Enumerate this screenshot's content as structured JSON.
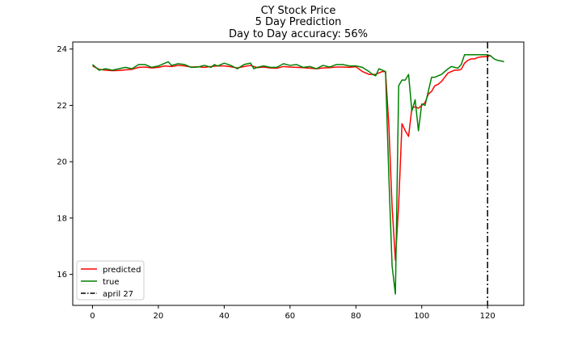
{
  "chart_data": {
    "type": "line",
    "title": "CY Stock Price",
    "subtitle": "5 Day Prediction",
    "annotation": "Day to Day accuracy: 56%",
    "xlabel": "",
    "ylabel": "",
    "xlim": [
      -6,
      131
    ],
    "ylim": [
      14.9,
      24.25
    ],
    "xticks": [
      0,
      20,
      40,
      60,
      80,
      100,
      120
    ],
    "yticks": [
      16,
      18,
      20,
      22,
      24
    ],
    "grid": false,
    "legend_position": "lower-left",
    "series": [
      {
        "name": "predicted",
        "color": "#ff0000",
        "x": [
          0,
          2,
          4,
          6,
          8,
          10,
          12,
          14,
          16,
          18,
          20,
          22,
          24,
          26,
          28,
          30,
          32,
          34,
          36,
          38,
          40,
          42,
          44,
          46,
          48,
          50,
          52,
          54,
          56,
          58,
          60,
          62,
          64,
          66,
          68,
          70,
          72,
          74,
          76,
          78,
          80,
          82,
          84,
          86,
          88,
          89,
          90,
          91,
          92,
          93,
          94,
          95,
          96,
          97,
          98,
          99,
          100,
          101,
          102,
          103,
          104,
          105,
          106,
          107,
          108,
          109,
          110,
          111,
          112,
          113,
          114,
          115,
          116,
          117,
          118,
          119,
          120,
          121
        ],
        "y": [
          23.4,
          23.28,
          23.25,
          23.23,
          23.24,
          23.26,
          23.28,
          23.35,
          23.36,
          23.33,
          23.35,
          23.4,
          23.38,
          23.42,
          23.4,
          23.36,
          23.37,
          23.35,
          23.38,
          23.4,
          23.4,
          23.37,
          23.33,
          23.38,
          23.42,
          23.34,
          23.36,
          23.33,
          23.32,
          23.38,
          23.36,
          23.35,
          23.34,
          23.32,
          23.3,
          23.33,
          23.34,
          23.36,
          23.36,
          23.35,
          23.37,
          23.2,
          23.1,
          23.1,
          23.2,
          23.2,
          21.3,
          18.4,
          16.5,
          18.5,
          21.35,
          21.1,
          20.9,
          21.9,
          21.95,
          21.9,
          22.0,
          22.1,
          22.4,
          22.5,
          22.7,
          22.75,
          22.85,
          23.0,
          23.15,
          23.2,
          23.25,
          23.25,
          23.28,
          23.5,
          23.6,
          23.65,
          23.65,
          23.7,
          23.72,
          23.73,
          23.73,
          23.78
        ]
      },
      {
        "name": "true",
        "color": "#008000",
        "x": [
          0,
          2,
          4,
          6,
          8,
          10,
          12,
          14,
          16,
          18,
          20,
          22,
          23,
          24,
          26,
          28,
          30,
          32,
          34,
          36,
          37,
          38,
          40,
          42,
          44,
          46,
          48,
          49,
          50,
          52,
          54,
          56,
          58,
          60,
          62,
          64,
          66,
          68,
          70,
          72,
          74,
          76,
          78,
          80,
          82,
          84,
          85,
          86,
          87,
          88,
          89,
          90,
          91,
          92,
          93,
          94,
          95,
          96,
          97,
          98,
          99,
          100,
          101,
          102,
          103,
          104,
          105,
          106,
          107,
          108,
          109,
          110,
          111,
          112,
          113,
          114,
          115,
          116,
          117,
          118,
          119,
          120,
          121,
          122,
          123,
          124,
          125
        ],
        "y": [
          23.45,
          23.25,
          23.3,
          23.25,
          23.3,
          23.35,
          23.3,
          23.45,
          23.45,
          23.35,
          23.4,
          23.5,
          23.55,
          23.42,
          23.48,
          23.45,
          23.35,
          23.36,
          23.42,
          23.35,
          23.45,
          23.4,
          23.5,
          23.42,
          23.3,
          23.45,
          23.5,
          23.3,
          23.35,
          23.4,
          23.35,
          23.35,
          23.48,
          23.42,
          23.45,
          23.35,
          23.38,
          23.3,
          23.42,
          23.36,
          23.45,
          23.45,
          23.4,
          23.4,
          23.35,
          23.2,
          23.1,
          23.05,
          23.3,
          23.25,
          23.2,
          19.5,
          16.3,
          15.3,
          22.7,
          22.9,
          22.9,
          23.1,
          21.8,
          22.2,
          21.1,
          22.05,
          22.0,
          22.5,
          23.0,
          23.0,
          23.05,
          23.1,
          23.2,
          23.3,
          23.38,
          23.35,
          23.32,
          23.45,
          23.8,
          23.8,
          23.8,
          23.8,
          23.8,
          23.8,
          23.8,
          23.8,
          23.75,
          23.65,
          23.6,
          23.58,
          23.55
        ]
      },
      {
        "name": "april 27",
        "color": "#000000",
        "vertical_line_x": 120,
        "style": "dash-dot"
      }
    ]
  }
}
